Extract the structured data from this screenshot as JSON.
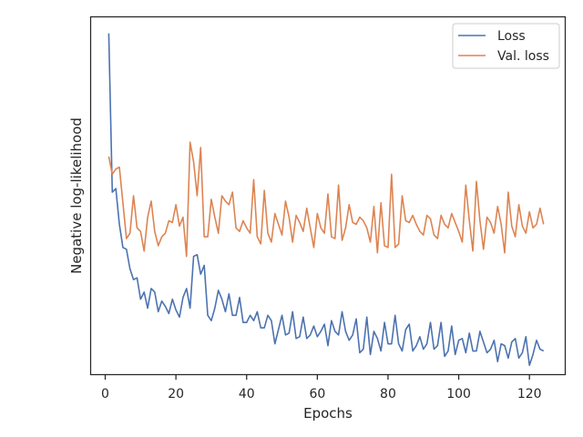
{
  "chart_data": {
    "type": "line",
    "title": "",
    "xlabel": "Epochs",
    "ylabel": "Negative log-likelihood",
    "xlim": [
      -4,
      130
    ],
    "ylim": [
      0,
      1
    ],
    "x_ticks": [
      0,
      20,
      40,
      60,
      80,
      100,
      120
    ],
    "y_ticks_shown": false,
    "grid": false,
    "legend_position": "top-right",
    "series": [
      {
        "name": "Loss",
        "color": "#4c72b0",
        "x": [
          1,
          2,
          3,
          4,
          5,
          6,
          7,
          8,
          9,
          10,
          11,
          12,
          13,
          14,
          15,
          16,
          17,
          18,
          19,
          20,
          21,
          22,
          23,
          24,
          25,
          26,
          27,
          28,
          29,
          30,
          31,
          32,
          33,
          34,
          35,
          36,
          37,
          38,
          39,
          40,
          41,
          42,
          43,
          44,
          45,
          46,
          47,
          48,
          49,
          50,
          51,
          52,
          53,
          54,
          55,
          56,
          57,
          58,
          59,
          60,
          61,
          62,
          63,
          64,
          65,
          66,
          67,
          68,
          69,
          70,
          71,
          72,
          73,
          74,
          75,
          76,
          77,
          78,
          79,
          80,
          81,
          82,
          83,
          84,
          85,
          86,
          87,
          88,
          89,
          90,
          91,
          92,
          93,
          94,
          95,
          96,
          97,
          98,
          99,
          100,
          101,
          102,
          103,
          104,
          105,
          106,
          107,
          108,
          109,
          110,
          111,
          112,
          113,
          114,
          115,
          116,
          117,
          118,
          119,
          120,
          121,
          122,
          123,
          124
        ],
        "y": [
          0.955,
          0.51,
          0.52,
          0.42,
          0.355,
          0.35,
          0.295,
          0.265,
          0.27,
          0.21,
          0.23,
          0.185,
          0.24,
          0.23,
          0.175,
          0.205,
          0.19,
          0.17,
          0.21,
          0.18,
          0.16,
          0.215,
          0.24,
          0.185,
          0.33,
          0.335,
          0.28,
          0.305,
          0.165,
          0.15,
          0.185,
          0.235,
          0.21,
          0.175,
          0.225,
          0.165,
          0.165,
          0.215,
          0.145,
          0.145,
          0.165,
          0.15,
          0.175,
          0.13,
          0.13,
          0.165,
          0.15,
          0.085,
          0.125,
          0.165,
          0.11,
          0.115,
          0.175,
          0.1,
          0.105,
          0.16,
          0.1,
          0.11,
          0.135,
          0.105,
          0.12,
          0.14,
          0.08,
          0.15,
          0.12,
          0.11,
          0.175,
          0.12,
          0.095,
          0.11,
          0.155,
          0.06,
          0.07,
          0.16,
          0.055,
          0.12,
          0.1,
          0.065,
          0.145,
          0.085,
          0.085,
          0.165,
          0.085,
          0.065,
          0.125,
          0.14,
          0.065,
          0.08,
          0.105,
          0.07,
          0.085,
          0.145,
          0.07,
          0.08,
          0.145,
          0.05,
          0.065,
          0.135,
          0.055,
          0.095,
          0.1,
          0.06,
          0.115,
          0.065,
          0.065,
          0.12,
          0.09,
          0.06,
          0.07,
          0.095,
          0.035,
          0.085,
          0.08,
          0.045,
          0.09,
          0.1,
          0.045,
          0.06,
          0.105,
          0.025,
          0.055,
          0.095,
          0.07,
          0.065
        ]
      },
      {
        "name": "Val. loss",
        "color": "#dd8452",
        "x": [
          1,
          2,
          3,
          4,
          5,
          6,
          7,
          8,
          9,
          10,
          11,
          12,
          13,
          14,
          15,
          16,
          17,
          18,
          19,
          20,
          21,
          22,
          23,
          24,
          25,
          26,
          27,
          28,
          29,
          30,
          31,
          32,
          33,
          34,
          35,
          36,
          37,
          38,
          39,
          40,
          41,
          42,
          43,
          44,
          45,
          46,
          47,
          48,
          49,
          50,
          51,
          52,
          53,
          54,
          55,
          56,
          57,
          58,
          59,
          60,
          61,
          62,
          63,
          64,
          65,
          66,
          67,
          68,
          69,
          70,
          71,
          72,
          73,
          74,
          75,
          76,
          77,
          78,
          79,
          80,
          81,
          82,
          83,
          84,
          85,
          86,
          87,
          88,
          89,
          90,
          91,
          92,
          93,
          94,
          95,
          96,
          97,
          98,
          99,
          100,
          101,
          102,
          103,
          104,
          105,
          106,
          107,
          108,
          109,
          110,
          111,
          112,
          113,
          114,
          115,
          116,
          117,
          118,
          119,
          120,
          121,
          122,
          123,
          124
        ],
        "y": [
          0.61,
          0.56,
          0.575,
          0.58,
          0.48,
          0.38,
          0.395,
          0.5,
          0.41,
          0.4,
          0.345,
          0.44,
          0.485,
          0.4,
          0.36,
          0.385,
          0.395,
          0.43,
          0.425,
          0.475,
          0.415,
          0.44,
          0.33,
          0.65,
          0.595,
          0.5,
          0.635,
          0.385,
          0.385,
          0.49,
          0.44,
          0.395,
          0.5,
          0.485,
          0.475,
          0.51,
          0.41,
          0.4,
          0.43,
          0.41,
          0.395,
          0.545,
          0.385,
          0.365,
          0.515,
          0.395,
          0.37,
          0.45,
          0.42,
          0.39,
          0.485,
          0.44,
          0.37,
          0.445,
          0.425,
          0.4,
          0.465,
          0.41,
          0.355,
          0.45,
          0.41,
          0.395,
          0.505,
          0.385,
          0.38,
          0.53,
          0.375,
          0.41,
          0.475,
          0.425,
          0.42,
          0.44,
          0.43,
          0.41,
          0.37,
          0.47,
          0.34,
          0.48,
          0.36,
          0.355,
          0.56,
          0.355,
          0.365,
          0.5,
          0.43,
          0.425,
          0.445,
          0.42,
          0.4,
          0.39,
          0.445,
          0.435,
          0.39,
          0.38,
          0.445,
          0.42,
          0.41,
          0.45,
          0.425,
          0.4,
          0.37,
          0.53,
          0.43,
          0.345,
          0.54,
          0.43,
          0.35,
          0.44,
          0.425,
          0.395,
          0.47,
          0.42,
          0.34,
          0.51,
          0.415,
          0.385,
          0.475,
          0.415,
          0.395,
          0.455,
          0.41,
          0.42,
          0.465,
          0.42
        ]
      }
    ]
  }
}
